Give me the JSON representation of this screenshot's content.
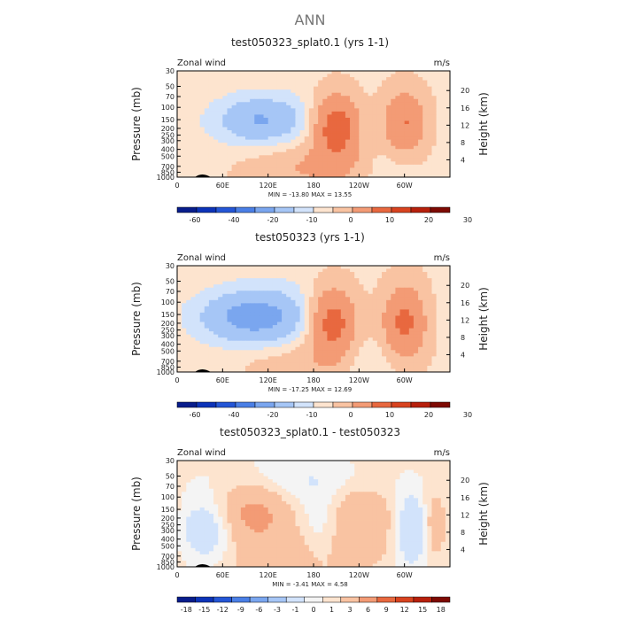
{
  "figure_title": "ANN",
  "colors": {
    "std_levels": [
      "#081d8c",
      "#0c33b8",
      "#2456d6",
      "#4a7fe6",
      "#7aa6ef",
      "#a6c6f6",
      "#d2e3fb",
      "#fde4cf",
      "#f9c3a2",
      "#f39b75",
      "#e8683f",
      "#d8431f",
      "#b7200c",
      "#7e0a03"
    ],
    "diff_levels": [
      "#081d8c",
      "#0c33b8",
      "#2456d6",
      "#4a7fe6",
      "#7aa6ef",
      "#a6c6f6",
      "#d2e3fb",
      "#f4f4f4",
      "#fde4cf",
      "#f9c3a2",
      "#f39b75",
      "#e8683f",
      "#d8431f",
      "#b7200c",
      "#7e0a03"
    ]
  },
  "chart_data": [
    {
      "type": "heatmap",
      "title": "test050323_splat0.1 (yrs 1-1)",
      "variable_label": "Zonal wind",
      "units_label": "m/s",
      "ylabel": "Pressure (mb)",
      "y2label": "Height (km)",
      "x_ticks": [
        "0",
        "60E",
        "120E",
        "180",
        "120W",
        "60W"
      ],
      "y_ticks": [
        "30",
        "50",
        "70",
        "100",
        "150",
        "200",
        "250",
        "300",
        "400",
        "500",
        "700",
        "850",
        "1000"
      ],
      "y2_ticks": [
        "20",
        "16",
        "12",
        "8",
        "4"
      ],
      "stats": "MIN = -13.80   MAX =  13.55",
      "colorbar_labels": [
        "-60",
        "-40",
        "-20",
        "-10",
        "0",
        "10",
        "20",
        "30"
      ],
      "scale": "std",
      "features": [
        {
          "lon": 140,
          "p": 160,
          "v": -3,
          "rlon": 75,
          "rp": 0.35
        },
        {
          "lon": 105,
          "p": 150,
          "v": -4,
          "rlon": 35,
          "rp": 0.25
        },
        {
          "lon": 210,
          "p": 190,
          "v": 13.5,
          "rlon": 22,
          "rp": 0.35
        },
        {
          "lon": 300,
          "p": 170,
          "v": 9,
          "rlon": 20,
          "rp": 0.35
        },
        {
          "lon": 180,
          "p": 700,
          "v": 4,
          "rlon": 60,
          "rp": 0.25
        },
        {
          "lon": 280,
          "p": 750,
          "v": -2,
          "rlon": 30,
          "rp": 0.3
        }
      ]
    },
    {
      "type": "heatmap",
      "title": "test050323 (yrs 1-1)",
      "variable_label": "Zonal wind",
      "units_label": "m/s",
      "ylabel": "Pressure (mb)",
      "y2label": "Height (km)",
      "x_ticks": [
        "0",
        "60E",
        "120E",
        "180",
        "120W",
        "60W"
      ],
      "y_ticks": [
        "30",
        "50",
        "70",
        "100",
        "150",
        "200",
        "250",
        "300",
        "400",
        "500",
        "700",
        "850",
        "1000"
      ],
      "y2_ticks": [
        "20",
        "16",
        "12",
        "8",
        "4"
      ],
      "stats": "MIN = -17.25   MAX =  12.69",
      "colorbar_labels": [
        "-60",
        "-40",
        "-20",
        "-10",
        "0",
        "10",
        "20",
        "30"
      ],
      "scale": "std",
      "features": [
        {
          "lon": 90,
          "p": 160,
          "v": -6,
          "rlon": 50,
          "rp": 0.3
        },
        {
          "lon": 145,
          "p": 190,
          "v": -3,
          "rlon": 60,
          "rp": 0.45
        },
        {
          "lon": 205,
          "p": 200,
          "v": 12.7,
          "rlon": 22,
          "rp": 0.38
        },
        {
          "lon": 300,
          "p": 200,
          "v": 10,
          "rlon": 20,
          "rp": 0.4
        },
        {
          "lon": 160,
          "p": 700,
          "v": 3,
          "rlon": 55,
          "rp": 0.25
        },
        {
          "lon": 250,
          "p": 750,
          "v": -2,
          "rlon": 35,
          "rp": 0.3
        }
      ]
    },
    {
      "type": "heatmap",
      "title": "test050323_splat0.1 - test050323",
      "variable_label": "Zonal wind",
      "units_label": "m/s",
      "ylabel": "Pressure (mb)",
      "y2label": "Height (km)",
      "x_ticks": [
        "0",
        "60E",
        "120E",
        "180",
        "120W",
        "60W"
      ],
      "y_ticks": [
        "30",
        "50",
        "70",
        "100",
        "150",
        "200",
        "250",
        "300",
        "400",
        "500",
        "700",
        "850",
        "1000"
      ],
      "y2_ticks": [
        "20",
        "16",
        "12",
        "8",
        "4"
      ],
      "stats": "MIN = -3.41   MAX =  4.58",
      "colorbar_labels": [
        "-18",
        "-15",
        "-12",
        "-9",
        "-6",
        "-3",
        "-1",
        "0",
        "1",
        "3",
        "6",
        "9",
        "12",
        "15",
        "18"
      ],
      "scale": "diff",
      "features": [
        {
          "lon": 40,
          "p": 300,
          "v": -3,
          "rlon": 25,
          "rp": 0.35
        },
        {
          "lon": 100,
          "p": 160,
          "v": 3.5,
          "rlon": 35,
          "rp": 0.35
        },
        {
          "lon": 190,
          "p": 300,
          "v": -1.5,
          "rlon": 20,
          "rp": 0.4
        },
        {
          "lon": 240,
          "p": 200,
          "v": 2.5,
          "rlon": 30,
          "rp": 0.4
        },
        {
          "lon": 310,
          "p": 300,
          "v": -3.4,
          "rlon": 15,
          "rp": 0.4
        },
        {
          "lon": 340,
          "p": 250,
          "v": 2,
          "rlon": 12,
          "rp": 0.35
        },
        {
          "lon": 160,
          "p": 60,
          "v": -1.5,
          "rlon": 80,
          "rp": 0.3
        },
        {
          "lon": 150,
          "p": 700,
          "v": 1.5,
          "rlon": 60,
          "rp": 0.3
        }
      ]
    }
  ]
}
